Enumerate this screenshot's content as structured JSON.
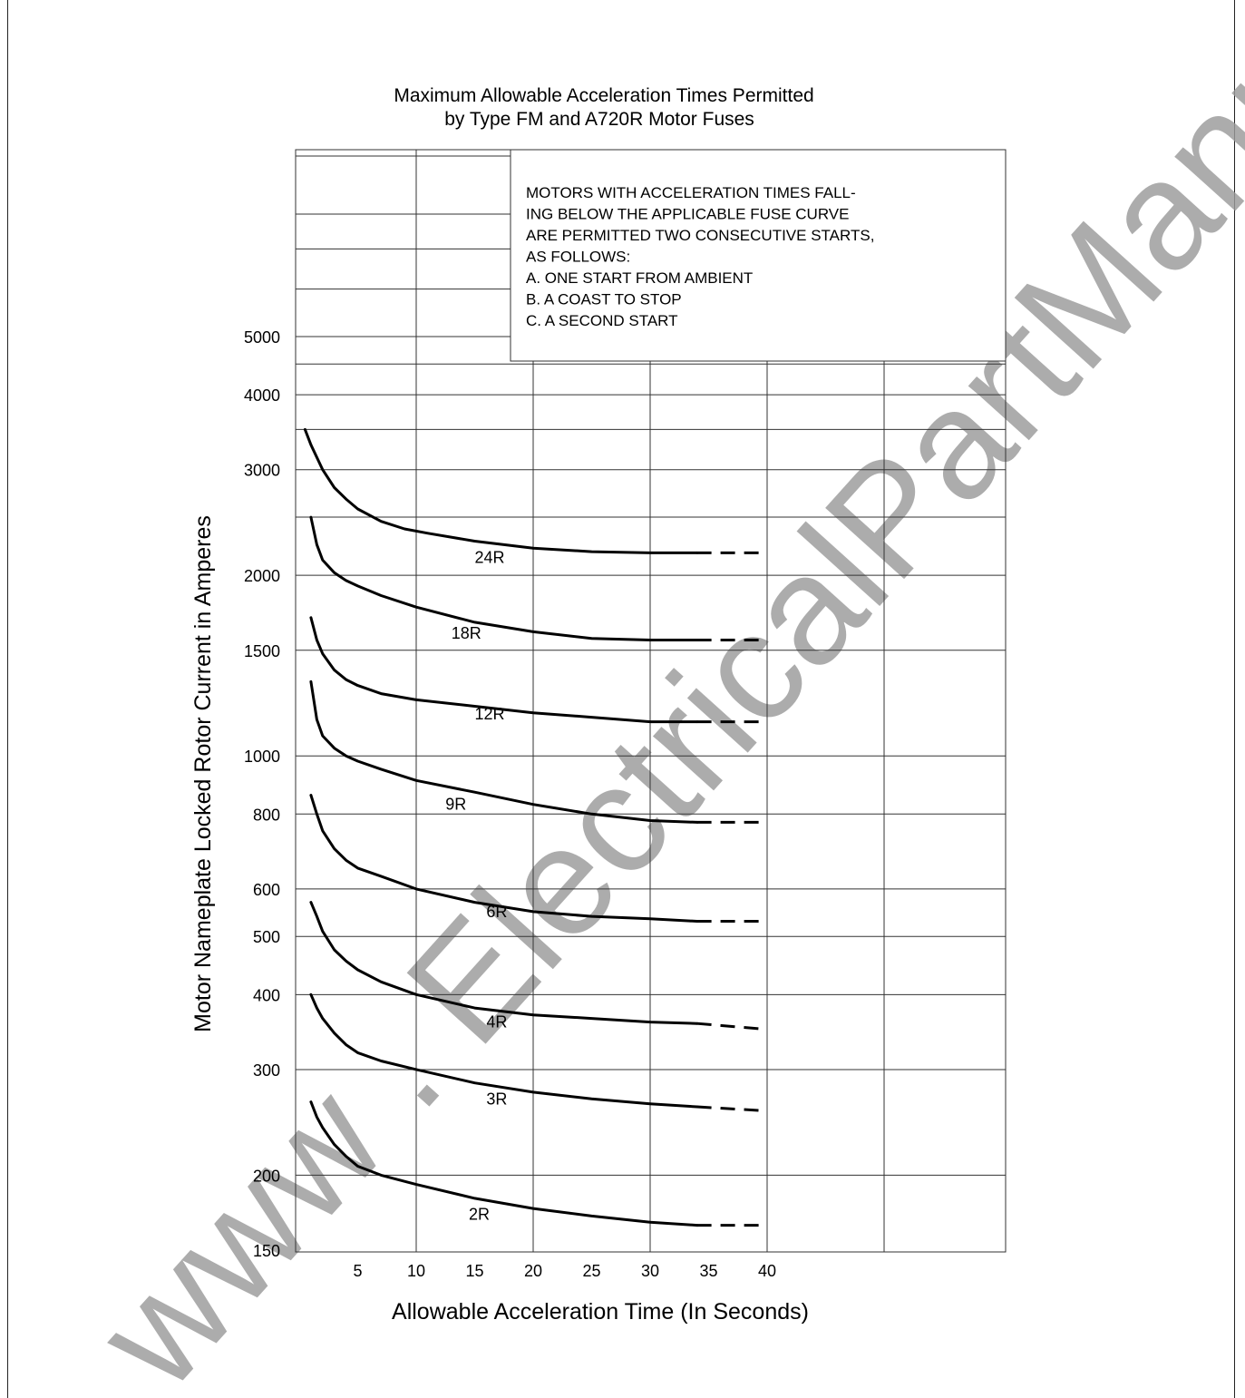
{
  "watermark": "www . ElectricalPartManuals . com",
  "chart_data": {
    "type": "line",
    "title": [
      "Maximum Allowable Acceleration Times Permitted",
      "by Type FM and A720R Motor Fuses"
    ],
    "xlabel": "Allowable Acceleration Time (In Seconds)",
    "ylabel": "Motor Nameplate Locked Rotor Current in Amperes",
    "x_scale": "linear",
    "y_scale": "log",
    "xlim": [
      0,
      60
    ],
    "ylim": [
      150,
      10000
    ],
    "xticks": [
      5,
      10,
      15,
      20,
      25,
      30,
      35,
      40
    ],
    "yticks": [
      150,
      200,
      300,
      400,
      500,
      600,
      800,
      1000,
      1500,
      2000,
      3000,
      4000,
      5000
    ],
    "grid": true,
    "note": [
      "MOTORS WITH ACCELERATION TIMES FALL-",
      "ING BELOW THE APPLICABLE FUSE CURVE",
      "ARE PERMITTED TWO CONSECUTIVE STARTS,",
      "AS FOLLOWS:",
      "A. ONE START FROM AMBIENT",
      "B. A COAST TO STOP",
      "C. A SECOND START"
    ],
    "series": [
      {
        "name": "24R",
        "x": [
          0.5,
          1,
          2,
          3,
          4,
          5,
          7,
          9,
          11,
          15,
          20,
          25,
          30,
          34
        ],
        "y": [
          3500,
          3300,
          3000,
          2800,
          2680,
          2580,
          2460,
          2390,
          2350,
          2280,
          2220,
          2190,
          2180,
          2180
        ],
        "dashed_to": [
          40,
          2180
        ]
      },
      {
        "name": "18R",
        "x": [
          1,
          1.5,
          2,
          3,
          4,
          5,
          7,
          10,
          15,
          20,
          25,
          30,
          34
        ],
        "y": [
          2500,
          2250,
          2120,
          2020,
          1960,
          1920,
          1850,
          1770,
          1670,
          1610,
          1570,
          1560,
          1560
        ],
        "dashed_to": [
          40,
          1560
        ]
      },
      {
        "name": "12R",
        "x": [
          1,
          1.5,
          2,
          3,
          4,
          5,
          7,
          10,
          15,
          20,
          25,
          30,
          34
        ],
        "y": [
          1700,
          1560,
          1480,
          1390,
          1340,
          1310,
          1270,
          1240,
          1210,
          1180,
          1160,
          1140,
          1140
        ],
        "dashed_to": [
          40,
          1140
        ]
      },
      {
        "name": "9R",
        "x": [
          1,
          1.5,
          2,
          3,
          4,
          5,
          7,
          10,
          15,
          20,
          25,
          30,
          34
        ],
        "y": [
          1330,
          1150,
          1080,
          1030,
          1000,
          980,
          950,
          910,
          870,
          830,
          800,
          780,
          775
        ],
        "dashed_to": [
          40,
          775
        ]
      },
      {
        "name": "6R",
        "x": [
          1,
          1.5,
          2,
          3,
          4,
          5,
          7,
          10,
          15,
          20,
          25,
          30,
          34
        ],
        "y": [
          860,
          800,
          750,
          700,
          670,
          650,
          630,
          600,
          570,
          550,
          540,
          535,
          530
        ],
        "dashed_to": [
          40,
          530
        ]
      },
      {
        "name": "4R",
        "x": [
          1,
          1.5,
          2,
          3,
          4,
          5,
          7,
          10,
          15,
          20,
          25,
          30,
          34
        ],
        "y": [
          570,
          540,
          510,
          475,
          455,
          440,
          420,
          400,
          380,
          370,
          365,
          360,
          358
        ],
        "dashed_to": [
          40,
          350
        ]
      },
      {
        "name": "3R",
        "x": [
          1,
          1.5,
          2,
          3,
          4,
          5,
          7,
          10,
          15,
          20,
          25,
          30,
          34
        ],
        "y": [
          400,
          380,
          365,
          345,
          330,
          320,
          310,
          300,
          285,
          275,
          268,
          263,
          260
        ],
        "dashed_to": [
          40,
          256
        ]
      },
      {
        "name": "2R",
        "x": [
          1,
          1.5,
          2,
          3,
          4,
          5,
          7,
          10,
          15,
          20,
          25,
          30,
          34
        ],
        "y": [
          265,
          250,
          240,
          225,
          215,
          207,
          200,
          193,
          183,
          176,
          171,
          167,
          165
        ],
        "dashed_to": [
          40,
          165
        ]
      }
    ]
  }
}
